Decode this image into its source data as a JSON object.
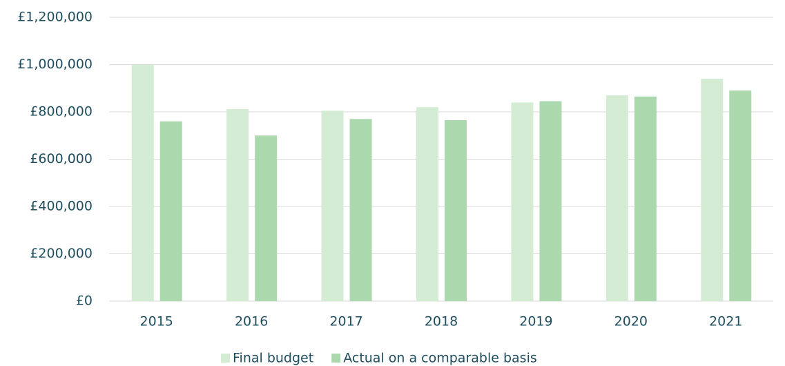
{
  "chart_data": {
    "type": "bar",
    "categories": [
      "2015",
      "2016",
      "2017",
      "2018",
      "2019",
      "2020",
      "2021"
    ],
    "series": [
      {
        "name": "Final budget",
        "color": "#d5ecd4",
        "values": [
          1000000,
          812000,
          805000,
          820000,
          840000,
          870000,
          940000
        ]
      },
      {
        "name": "Actual on a comparable basis",
        "color": "#acd8ad",
        "values": [
          760000,
          700000,
          770000,
          765000,
          845000,
          865000,
          890000
        ]
      }
    ],
    "ylim": [
      0,
      1200000
    ],
    "yticks": [
      {
        "value": 0,
        "label": "£0"
      },
      {
        "value": 200000,
        "label": "£200,000"
      },
      {
        "value": 400000,
        "label": "£400,000"
      },
      {
        "value": 600000,
        "label": "£600,000"
      },
      {
        "value": 800000,
        "label": "£800,000"
      },
      {
        "value": 1000000,
        "label": "£1,000,000"
      },
      {
        "value": 1200000,
        "label": "£1,200,000"
      }
    ],
    "grid": true,
    "legend": "bottom"
  }
}
